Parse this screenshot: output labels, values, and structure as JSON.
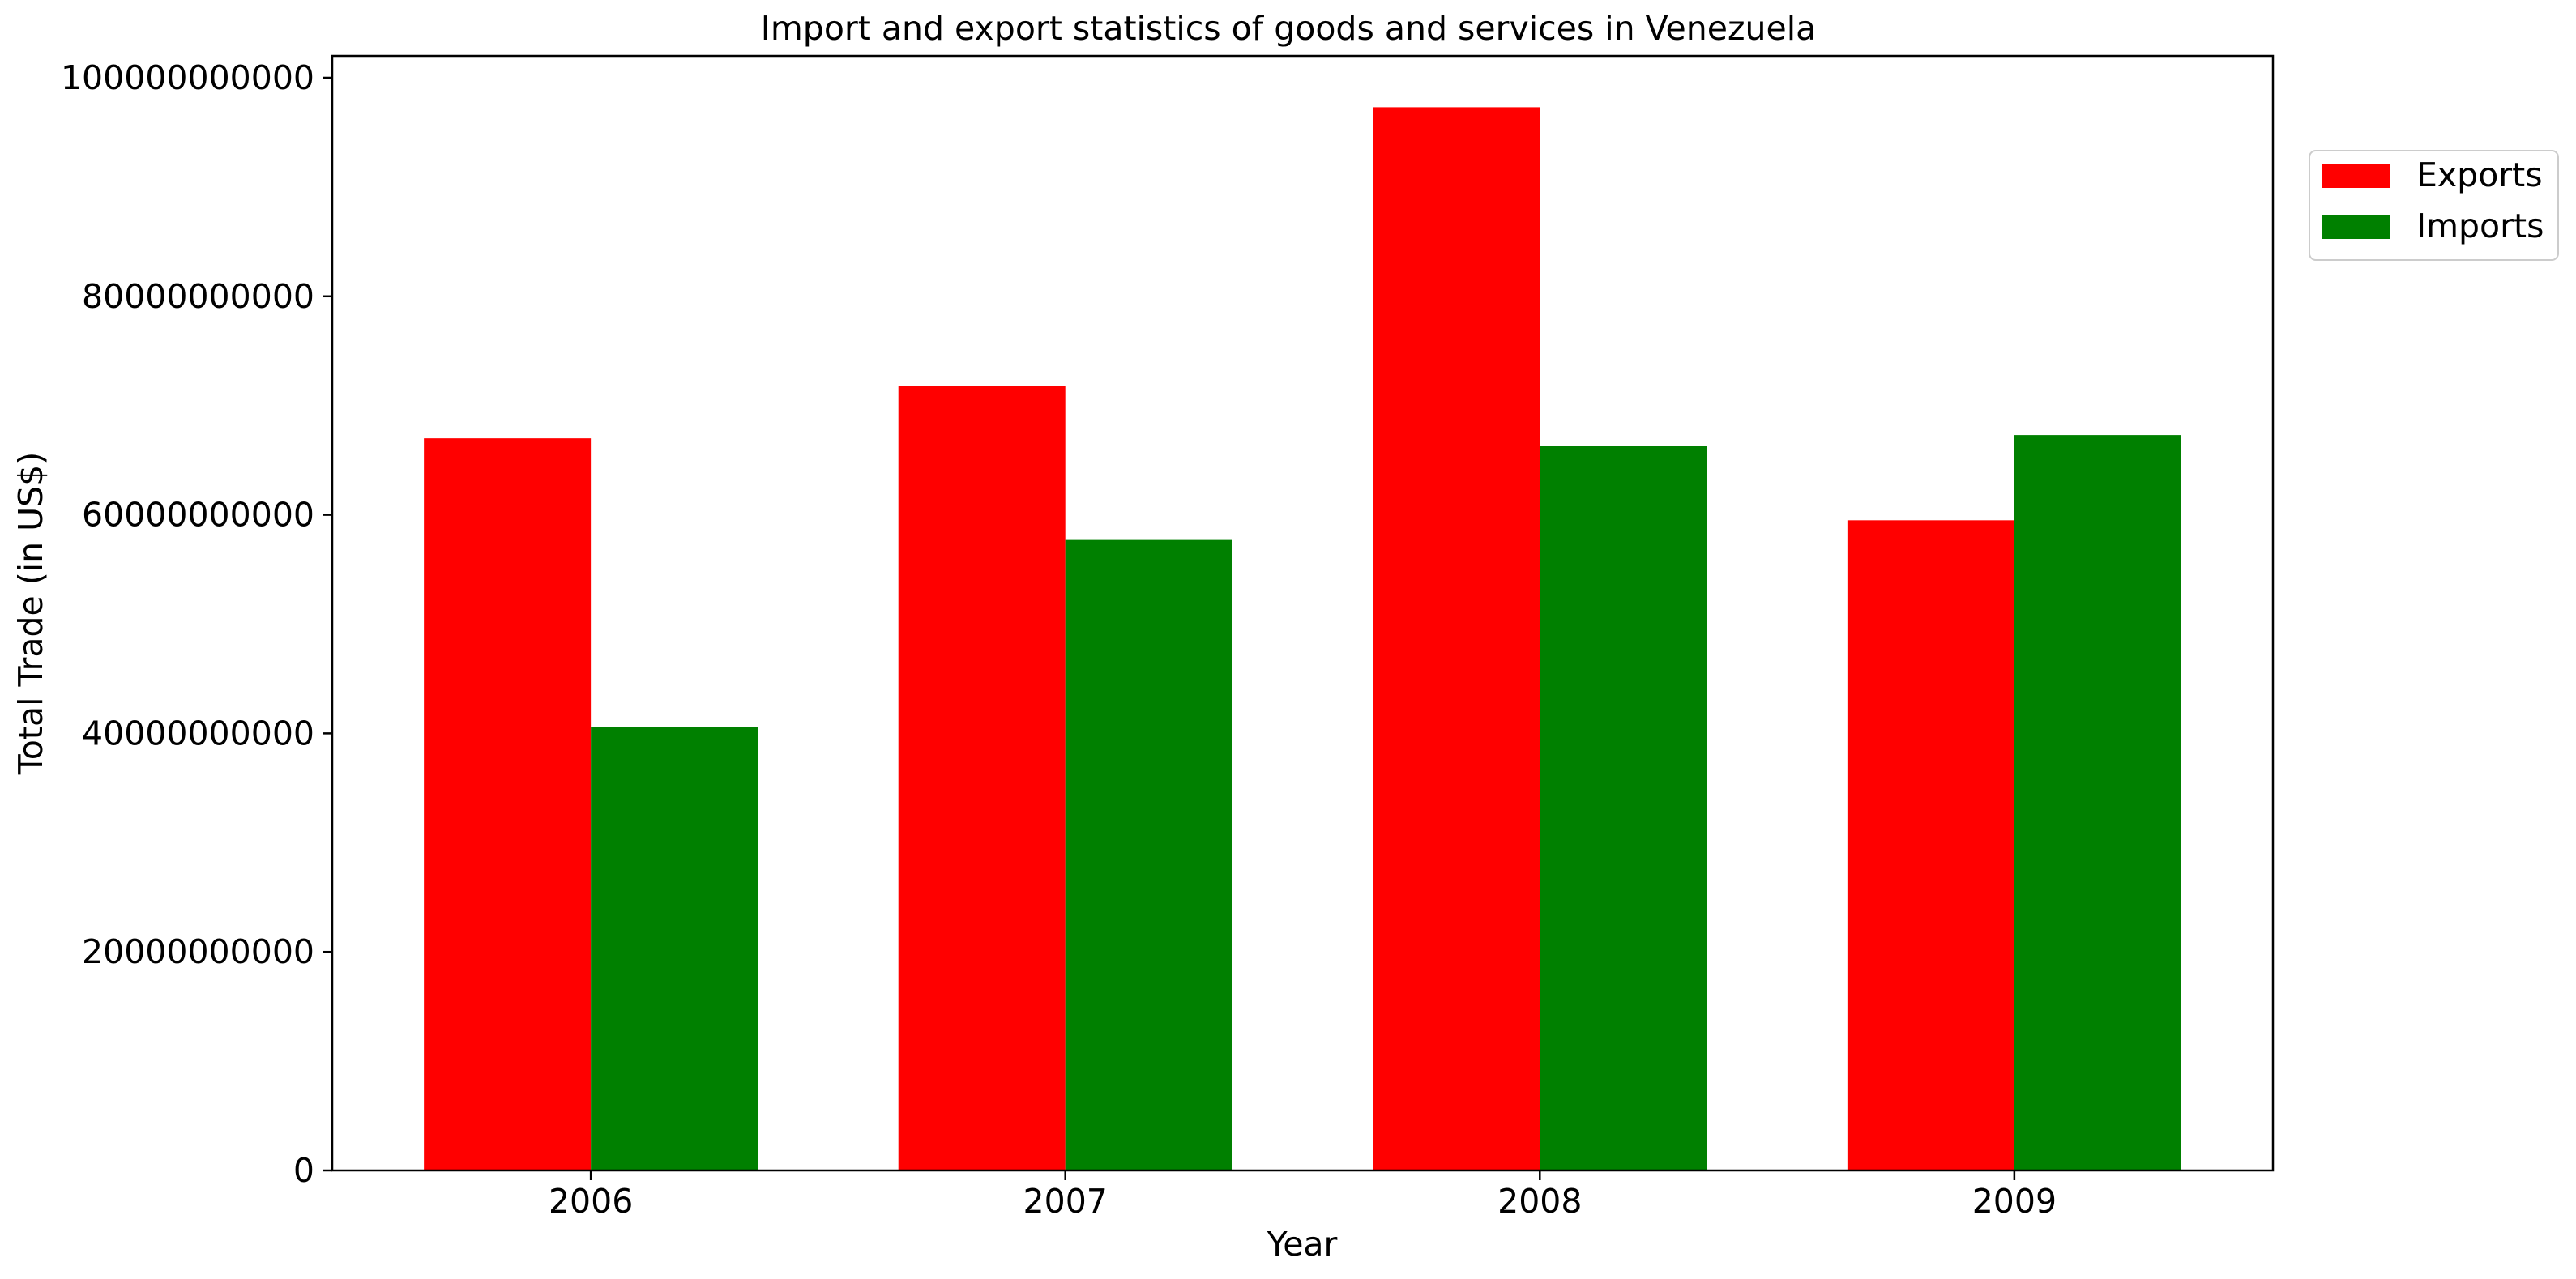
{
  "chart_data": {
    "type": "bar",
    "title": "Import and export statistics of goods and services in Venezuela",
    "xlabel": "Year",
    "ylabel": "Total Trade (in US$)",
    "categories": [
      "2006",
      "2007",
      "2008",
      "2009"
    ],
    "series": [
      {
        "name": "Exports",
        "color": "#ff0000",
        "values": [
          67000000000,
          71800000000,
          97300000000,
          59500000000
        ]
      },
      {
        "name": "Imports",
        "color": "#008000",
        "values": [
          40600000000,
          57700000000,
          66300000000,
          67300000000
        ]
      }
    ],
    "ylim": [
      0,
      102000000000
    ],
    "yticks": [
      0,
      20000000000,
      40000000000,
      60000000000,
      80000000000,
      100000000000
    ],
    "ytick_labels": [
      "0",
      "20000000000",
      "40000000000",
      "60000000000",
      "80000000000",
      "100000000000"
    ],
    "grid": false,
    "legend_position": "top-right, outside plot"
  }
}
